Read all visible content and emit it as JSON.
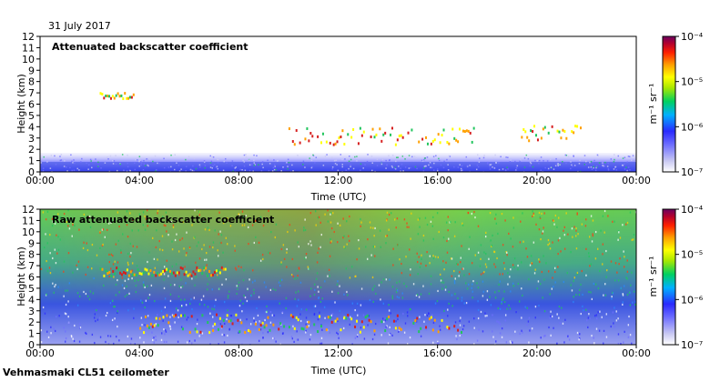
{
  "figure": {
    "date": "31 July 2017",
    "instrument": "Vehmasmaki CL51 ceilometer"
  },
  "colors": {
    "background": "#ffffff",
    "axis": "#000000",
    "noise_blue": "#3a4fe0",
    "noise_green": "#22c55e",
    "signal_red": "#d62020",
    "colormap": [
      "#ffffff",
      "#c9c9f2",
      "#6f6fff",
      "#2a2aff",
      "#00b0ff",
      "#00d060",
      "#a8e800",
      "#ffff00",
      "#ffa000",
      "#ff2000",
      "#b00030",
      "#6a0060"
    ]
  },
  "chart_data": [
    {
      "type": "heatmap",
      "title": "Attenuated backscatter coefficient",
      "xlabel": "Time (UTC)",
      "ylabel": "Height (km)",
      "xlim": [
        0,
        24
      ],
      "ylim": [
        0,
        12
      ],
      "x_ticks": [
        "00:00",
        "04:00",
        "08:00",
        "12:00",
        "16:00",
        "20:00",
        "00:00"
      ],
      "y_ticks": [
        "0",
        "1",
        "2",
        "3",
        "4",
        "5",
        "6",
        "7",
        "8",
        "9",
        "10",
        "11",
        "12"
      ],
      "colorbar": {
        "label": "m⁻¹ sr⁻¹",
        "scale": "log",
        "ticks": [
          "10⁻⁴",
          "10⁻⁵",
          "10⁻⁶",
          "10⁻⁷"
        ]
      },
      "features": [
        {
          "name": "boundary-layer",
          "t_start": 0,
          "t_end": 24,
          "h_min": 0,
          "h_max": 1.6
        },
        {
          "name": "cloud-layer-upper",
          "t_start": 2.4,
          "t_end": 3.8,
          "h_min": 6.6,
          "h_max": 7.1
        },
        {
          "name": "cloud-fragments-mid",
          "t_start": 10,
          "t_end": 17.5,
          "h_min": 2.5,
          "h_max": 4.0
        },
        {
          "name": "cloud-fragments-evening",
          "t_start": 19,
          "t_end": 21.8,
          "h_min": 2.8,
          "h_max": 4.2
        }
      ]
    },
    {
      "type": "heatmap",
      "title": "Raw attenuated backscatter coefficient",
      "xlabel": "Time (UTC)",
      "ylabel": "Height (km)",
      "xlim": [
        0,
        24
      ],
      "ylim": [
        0,
        12
      ],
      "x_ticks": [
        "00:00",
        "04:00",
        "08:00",
        "12:00",
        "16:00",
        "20:00",
        "00:00"
      ],
      "y_ticks": [
        "0",
        "1",
        "2",
        "3",
        "4",
        "5",
        "6",
        "7",
        "8",
        "9",
        "10",
        "11",
        "12"
      ],
      "colorbar": {
        "label": "m⁻¹ sr⁻¹",
        "scale": "log",
        "ticks": [
          "10⁻⁴",
          "10⁻⁵",
          "10⁻⁶",
          "10⁻⁷"
        ]
      },
      "features": [
        {
          "name": "noise-field",
          "t_start": 0,
          "t_end": 24,
          "h_min": 0,
          "h_max": 12
        },
        {
          "name": "cloud-layer-upper",
          "t_start": 2.4,
          "t_end": 7.5,
          "h_min": 6.2,
          "h_max": 7.0
        },
        {
          "name": "boundary-layer-top",
          "t_start": 4,
          "t_end": 17,
          "h_min": 1.2,
          "h_max": 2.8
        }
      ]
    }
  ]
}
